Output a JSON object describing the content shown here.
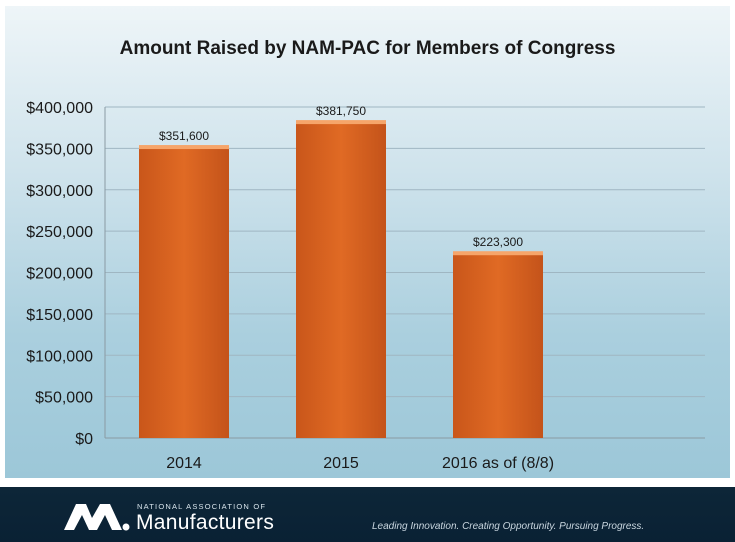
{
  "chart_data": {
    "type": "bar",
    "title": "Amount Raised by NAM-PAC for Members of Congress",
    "categories": [
      "2014",
      "2015",
      "2016 as of (8/8)"
    ],
    "values": [
      351600,
      381750,
      223300
    ],
    "data_labels": [
      "$351,600",
      "$381,750",
      "$223,300"
    ],
    "ylim": [
      0,
      400000
    ],
    "yticks": [
      0,
      50000,
      100000,
      150000,
      200000,
      250000,
      300000,
      350000,
      400000
    ],
    "ytick_labels": [
      "$0",
      "$50,000",
      "$100,000",
      "$150,000",
      "$200,000",
      "$250,000",
      "$300,000",
      "$350,000",
      "$400,000"
    ],
    "grid": true,
    "bar_color": "#e06a24"
  },
  "footer": {
    "org_small": "NATIONAL ASSOCIATION OF",
    "org_name": "Manufacturers",
    "tagline": "Leading Innovation. Creating Opportunity. Pursuing Progress."
  },
  "colors": {
    "footer_bg": "#0d2638",
    "bar": "#e06a24"
  }
}
